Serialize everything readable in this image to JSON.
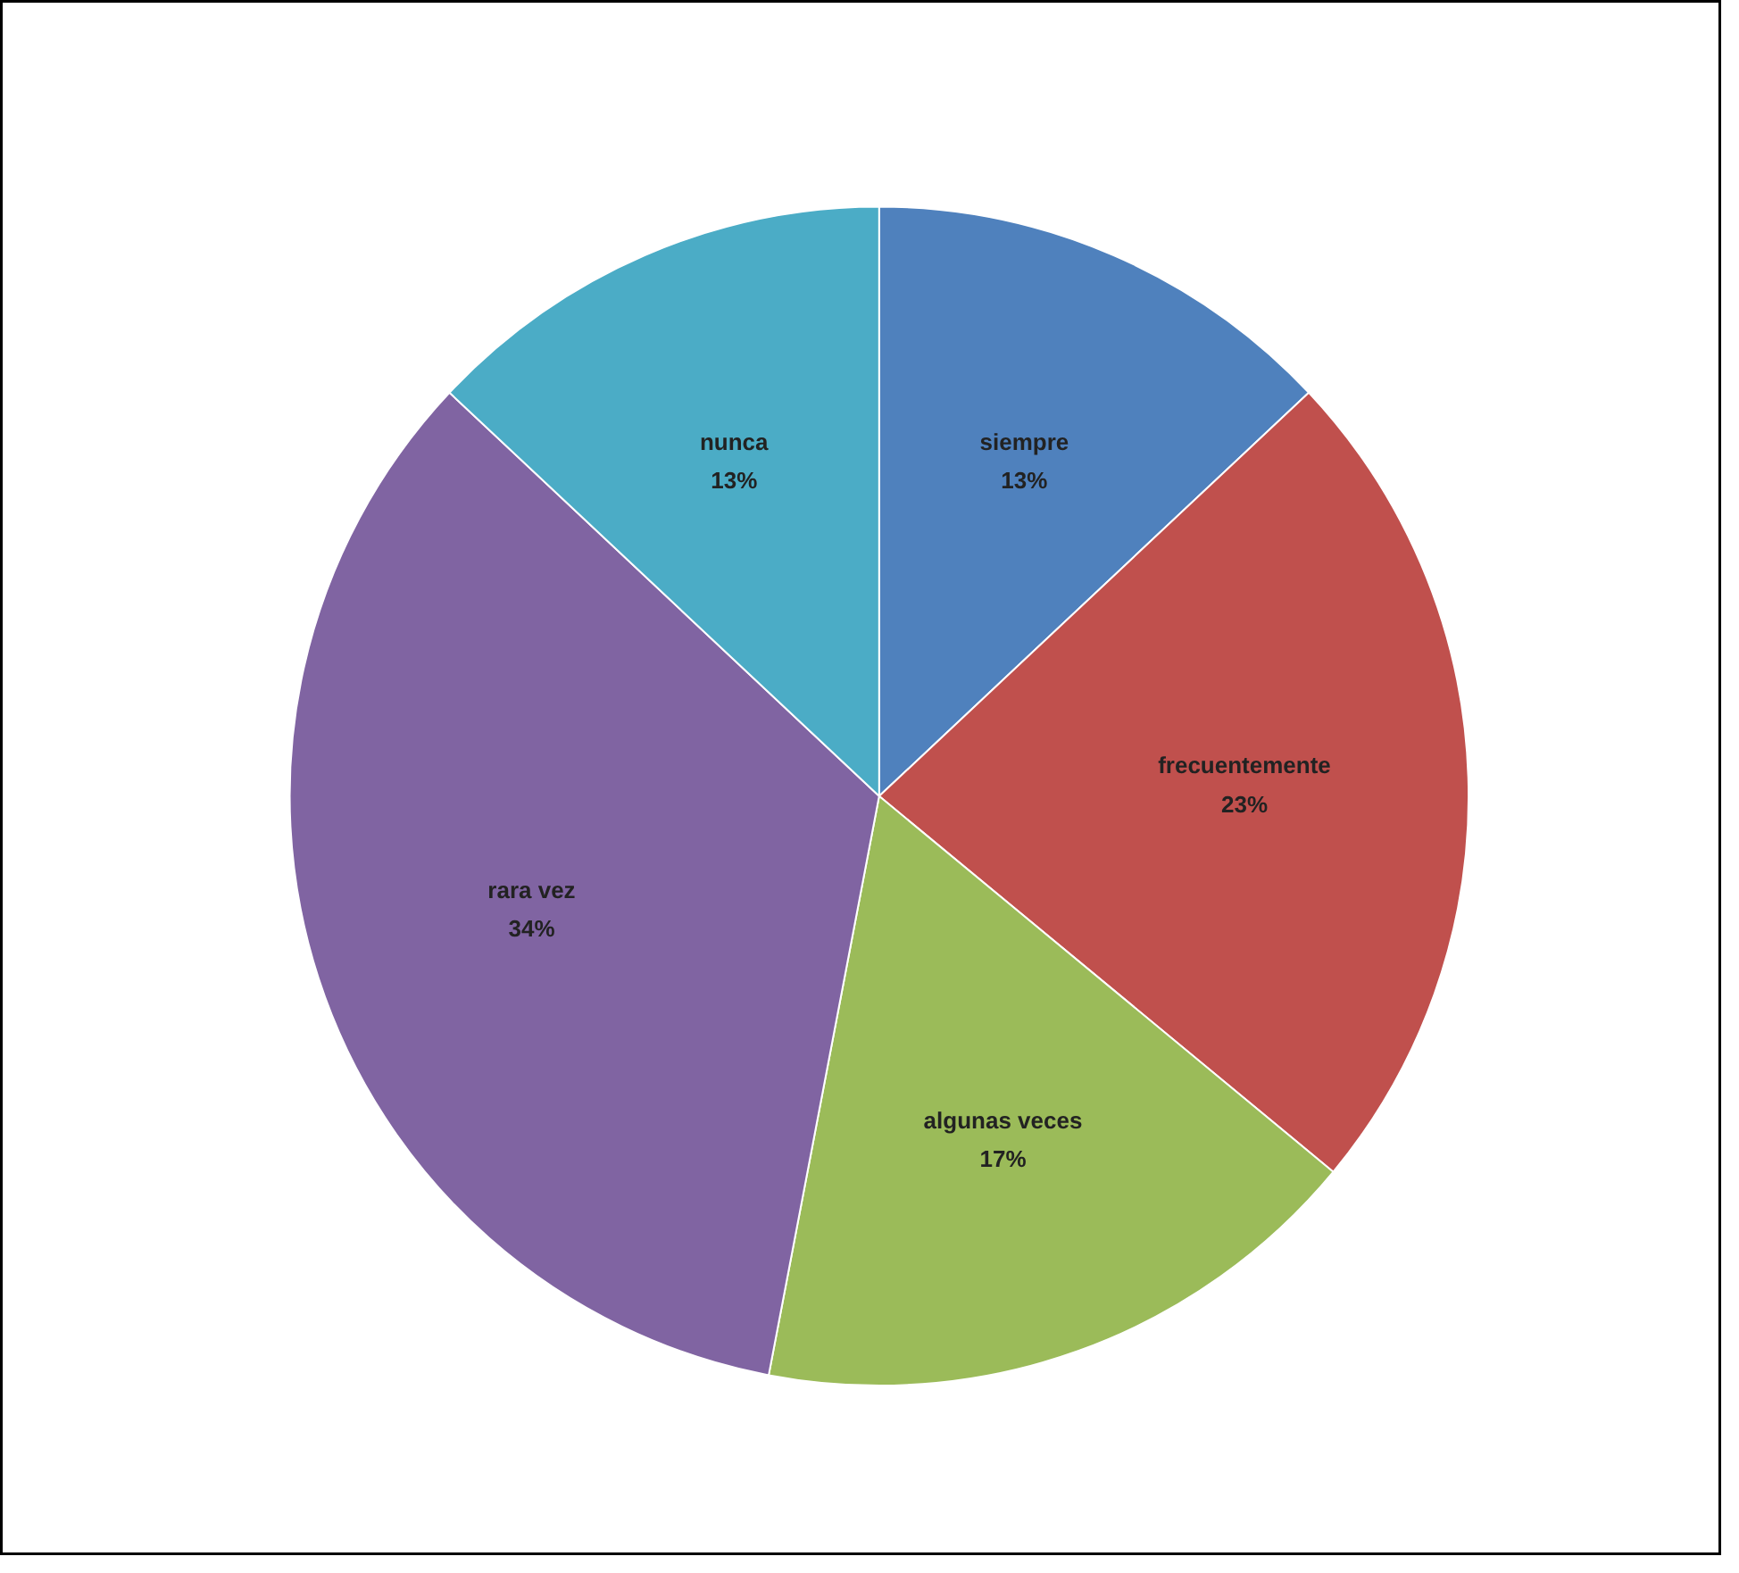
{
  "chart_data": {
    "type": "pie",
    "categories": [
      "siempre",
      "frecuentemente",
      "algunas veces",
      "rara vez",
      "nunca"
    ],
    "values": [
      13,
      23,
      17,
      34,
      13
    ],
    "colors": [
      "#4f81bd",
      "#c0504d",
      "#9bbb59",
      "#8064a2",
      "#4bacc6"
    ],
    "value_labels": [
      "13%",
      "23%",
      "17%",
      "34%",
      "13%"
    ]
  }
}
